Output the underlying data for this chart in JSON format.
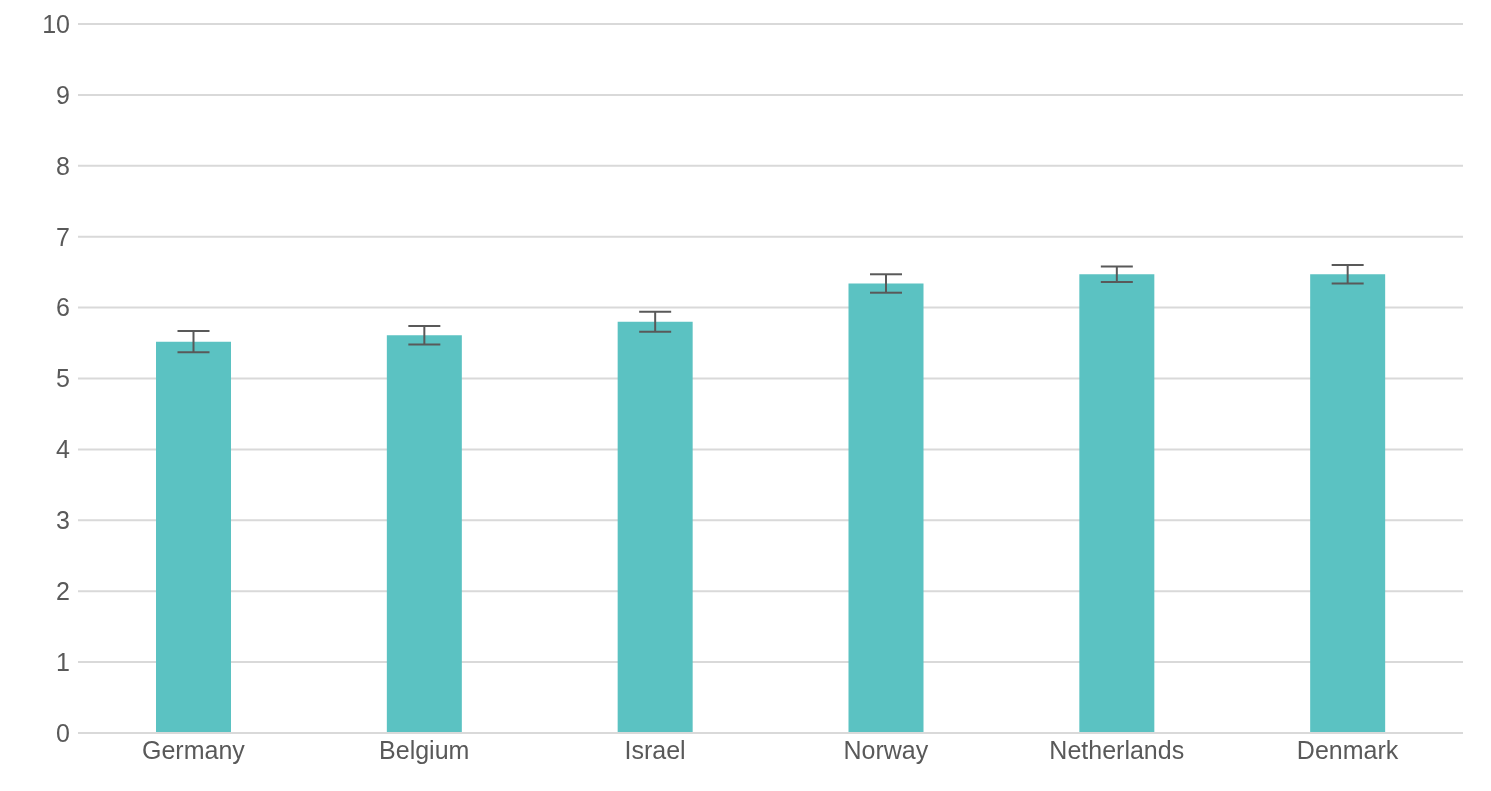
{
  "chart_data": {
    "type": "bar",
    "categories": [
      "Germany",
      "Belgium",
      "Israel",
      "Norway",
      "Netherlands",
      "Denmark"
    ],
    "values": [
      5.52,
      5.61,
      5.8,
      6.34,
      6.47,
      6.47
    ],
    "errors": [
      0.15,
      0.13,
      0.14,
      0.13,
      0.11,
      0.13
    ],
    "color": "#5bc2c2",
    "ylim": [
      0,
      10
    ],
    "yticks": [
      0,
      1,
      2,
      3,
      4,
      5,
      6,
      7,
      8,
      9,
      10
    ],
    "grid": "y"
  }
}
